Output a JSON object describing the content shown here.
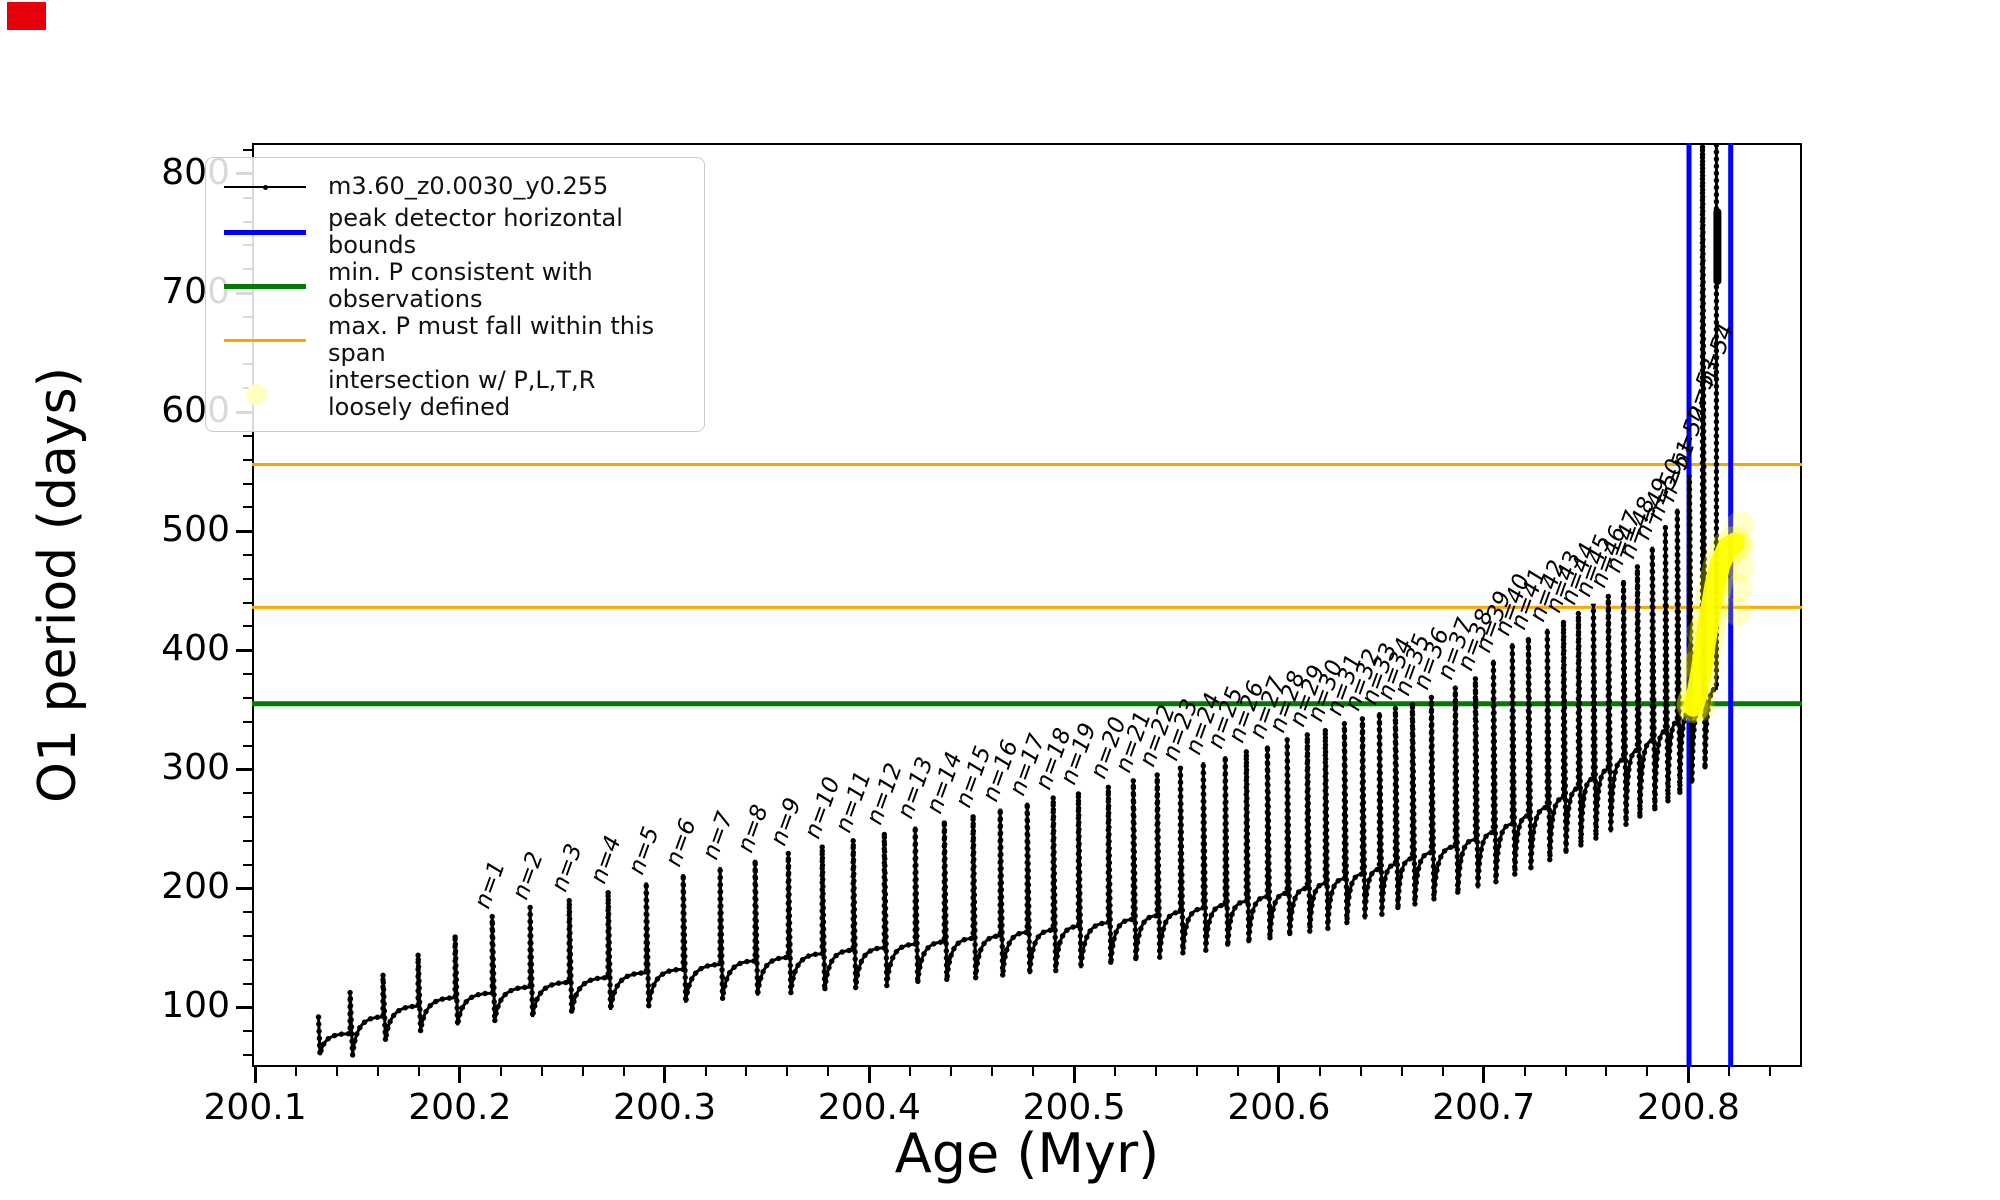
{
  "window": {
    "corner_marker_color": "#e8000b"
  },
  "figure": {
    "xlabel": "Age (Myr)",
    "ylabel": "O1 period (days)"
  },
  "legend": {
    "items": [
      {
        "type": "line-dot",
        "color": "#000000",
        "lw": 2,
        "label": "m3.60_z0.0030_y0.255"
      },
      {
        "type": "line",
        "color": "#0000ff",
        "lw": 5,
        "label": "peak detector horizontal bounds"
      },
      {
        "type": "line",
        "color": "#007c00",
        "lw": 5,
        "label": "min. P consistent with observations"
      },
      {
        "type": "line",
        "color": "#ffa500",
        "lw": 3,
        "label": "max. P must fall within this span"
      },
      {
        "type": "dot",
        "color": "#ffffc2",
        "lw": 0,
        "label": "intersection w/ P,L,T,R\nloosely defined"
      }
    ]
  },
  "chart_data": {
    "type": "line",
    "title": "",
    "xlabel": "Age (Myr)",
    "ylabel": "O1 period (days)",
    "series_label": "m3.60_z0.0030_y0.255",
    "xlim": [
      200.0985,
      200.8555
    ],
    "ylim": [
      50,
      826
    ],
    "grid": false,
    "legend_position": "upper left",
    "xticks": {
      "values": [
        200.1,
        200.2,
        200.3,
        200.4,
        200.5,
        200.6,
        200.7,
        200.8
      ],
      "labels": [
        "200.1",
        "200.2",
        "200.3",
        "200.4",
        "200.5",
        "200.6",
        "200.7",
        "200.8"
      ],
      "minor_step": 0.02
    },
    "yticks": {
      "values": [
        100,
        200,
        300,
        400,
        500,
        600,
        700,
        800
      ],
      "labels": [
        "100",
        "200",
        "300",
        "400",
        "500",
        "600",
        "700",
        "800"
      ],
      "minor_step": 20
    },
    "track_start": {
      "x": 200.131,
      "y0": 92,
      "dip": 60
    },
    "cycles_note": "each cycle: [n, age_Myr_of_pulse, peak_period_days, plateau_before_pulse, dip_after_pulse, optional_label_anchor_period]",
    "cycles": [
      [
        0,
        200.1464,
        113,
        78,
        60
      ],
      [
        0,
        200.1625,
        128,
        92,
        72
      ],
      [
        0,
        200.1796,
        145,
        101,
        80
      ],
      [
        0,
        200.1977,
        161,
        108,
        85
      ],
      [
        1,
        200.2158,
        177,
        112,
        88
      ],
      [
        2,
        200.2343,
        184,
        117,
        92
      ],
      [
        3,
        200.2534,
        191,
        121,
        95
      ],
      [
        4,
        200.2724,
        198,
        125,
        98
      ],
      [
        5,
        200.291,
        205,
        129,
        101
      ],
      [
        6,
        200.3091,
        212,
        132,
        104
      ],
      [
        7,
        200.3271,
        218,
        136,
        107
      ],
      [
        8,
        200.3442,
        224,
        139,
        110
      ],
      [
        9,
        200.3604,
        230,
        142,
        112
      ],
      [
        10,
        200.377,
        236,
        145,
        114
      ],
      [
        11,
        200.3921,
        241,
        148,
        116
      ],
      [
        12,
        200.4073,
        247,
        150,
        118
      ],
      [
        13,
        200.4224,
        252,
        153,
        120
      ],
      [
        14,
        200.4366,
        257,
        155,
        122
      ],
      [
        15,
        200.4507,
        262,
        158,
        124
      ],
      [
        16,
        200.4639,
        267,
        160,
        126
      ],
      [
        17,
        200.4771,
        272,
        163,
        128
      ],
      [
        18,
        200.4898,
        277,
        165,
        130
      ],
      [
        19,
        200.5021,
        281,
        168,
        133
      ],
      [
        20,
        200.5167,
        286,
        171,
        136
      ],
      [
        21,
        200.5289,
        291,
        174,
        139
      ],
      [
        22,
        200.5406,
        296,
        177,
        142
      ],
      [
        23,
        200.5519,
        301,
        180,
        145
      ],
      [
        24,
        200.5631,
        306,
        183,
        148
      ],
      [
        25,
        200.5738,
        311,
        186,
        151
      ],
      [
        26,
        200.5841,
        316,
        189,
        154
      ],
      [
        27,
        200.5944,
        320,
        193,
        157
      ],
      [
        28,
        200.6041,
        325,
        196,
        160
      ],
      [
        29,
        200.6139,
        330,
        200,
        163
      ],
      [
        30,
        200.6227,
        334,
        204,
        166
      ],
      [
        31,
        200.632,
        339,
        208,
        170
      ],
      [
        32,
        200.6408,
        343,
        212,
        174
      ],
      [
        33,
        200.6491,
        348,
        216,
        178
      ],
      [
        34,
        200.6569,
        352,
        220,
        182
      ],
      [
        35,
        200.6652,
        356,
        225,
        186
      ],
      [
        36,
        200.6745,
        361,
        230,
        190
      ],
      [
        37,
        200.6862,
        369,
        235,
        195
      ],
      [
        38,
        200.696,
        377,
        241,
        200
      ],
      [
        39,
        200.7048,
        392,
        247,
        205
      ],
      [
        40,
        200.714,
        406,
        254,
        211
      ],
      [
        41,
        200.7219,
        411,
        261,
        217
      ],
      [
        42,
        200.7311,
        418,
        268,
        223
      ],
      [
        43,
        200.739,
        425,
        276,
        229
      ],
      [
        44,
        200.7463,
        432,
        284,
        235
      ],
      [
        45,
        200.7536,
        439,
        292,
        241
      ],
      [
        46,
        200.7609,
        446,
        300,
        247
      ],
      [
        47,
        200.7683,
        459,
        308,
        253
      ],
      [
        48,
        200.7751,
        471,
        316,
        259
      ],
      [
        49,
        200.7824,
        487,
        324,
        265
      ],
      [
        50,
        200.7888,
        503,
        332,
        272
      ],
      [
        51,
        200.7946,
        519,
        340,
        279
      ],
      [
        52,
        200.8005,
        547,
        348,
        288
      ],
      [
        53,
        200.8069,
        830,
        356,
        300,
        587
      ],
      [
        54,
        200.8137,
        830,
        368,
        0,
        616
      ]
    ],
    "terminal_cluster": {
      "x": 200.8142,
      "y_from": 710,
      "y_to": 768
    },
    "hlines": [
      {
        "name": "max-P-span-upper",
        "y": 556,
        "color": "#ffa500",
        "width": 3
      },
      {
        "name": "max-P-span-lower",
        "y": 436,
        "color": "#ffa500",
        "width": 3
      },
      {
        "name": "min-P-observed",
        "y": 355,
        "color": "#007c00",
        "width": 5
      }
    ],
    "vlines": [
      {
        "name": "peak-bound-left",
        "x": 200.8003,
        "color": "#0000ff",
        "width": 5
      },
      {
        "name": "peak-bound-right",
        "x": 200.8207,
        "color": "#0000ff",
        "width": 5
      }
    ],
    "intersection": {
      "color": "#ffff00",
      "core": [
        [
          200.8025,
          353
        ],
        [
          200.804,
          362
        ],
        [
          200.806,
          380
        ],
        [
          200.808,
          402
        ],
        [
          200.8105,
          430
        ],
        [
          200.813,
          455
        ],
        [
          200.8155,
          472
        ],
        [
          200.819,
          486
        ],
        [
          200.8225,
          490
        ]
      ],
      "halo_dots": [
        [
          200.801,
          356
        ],
        [
          200.8035,
          388
        ],
        [
          200.806,
          415
        ],
        [
          200.803,
          352
        ],
        [
          200.8062,
          352
        ],
        [
          200.824,
          432
        ],
        [
          200.8245,
          452
        ],
        [
          200.8255,
          470
        ],
        [
          200.825,
          487
        ],
        [
          200.8252,
          505
        ]
      ]
    }
  }
}
